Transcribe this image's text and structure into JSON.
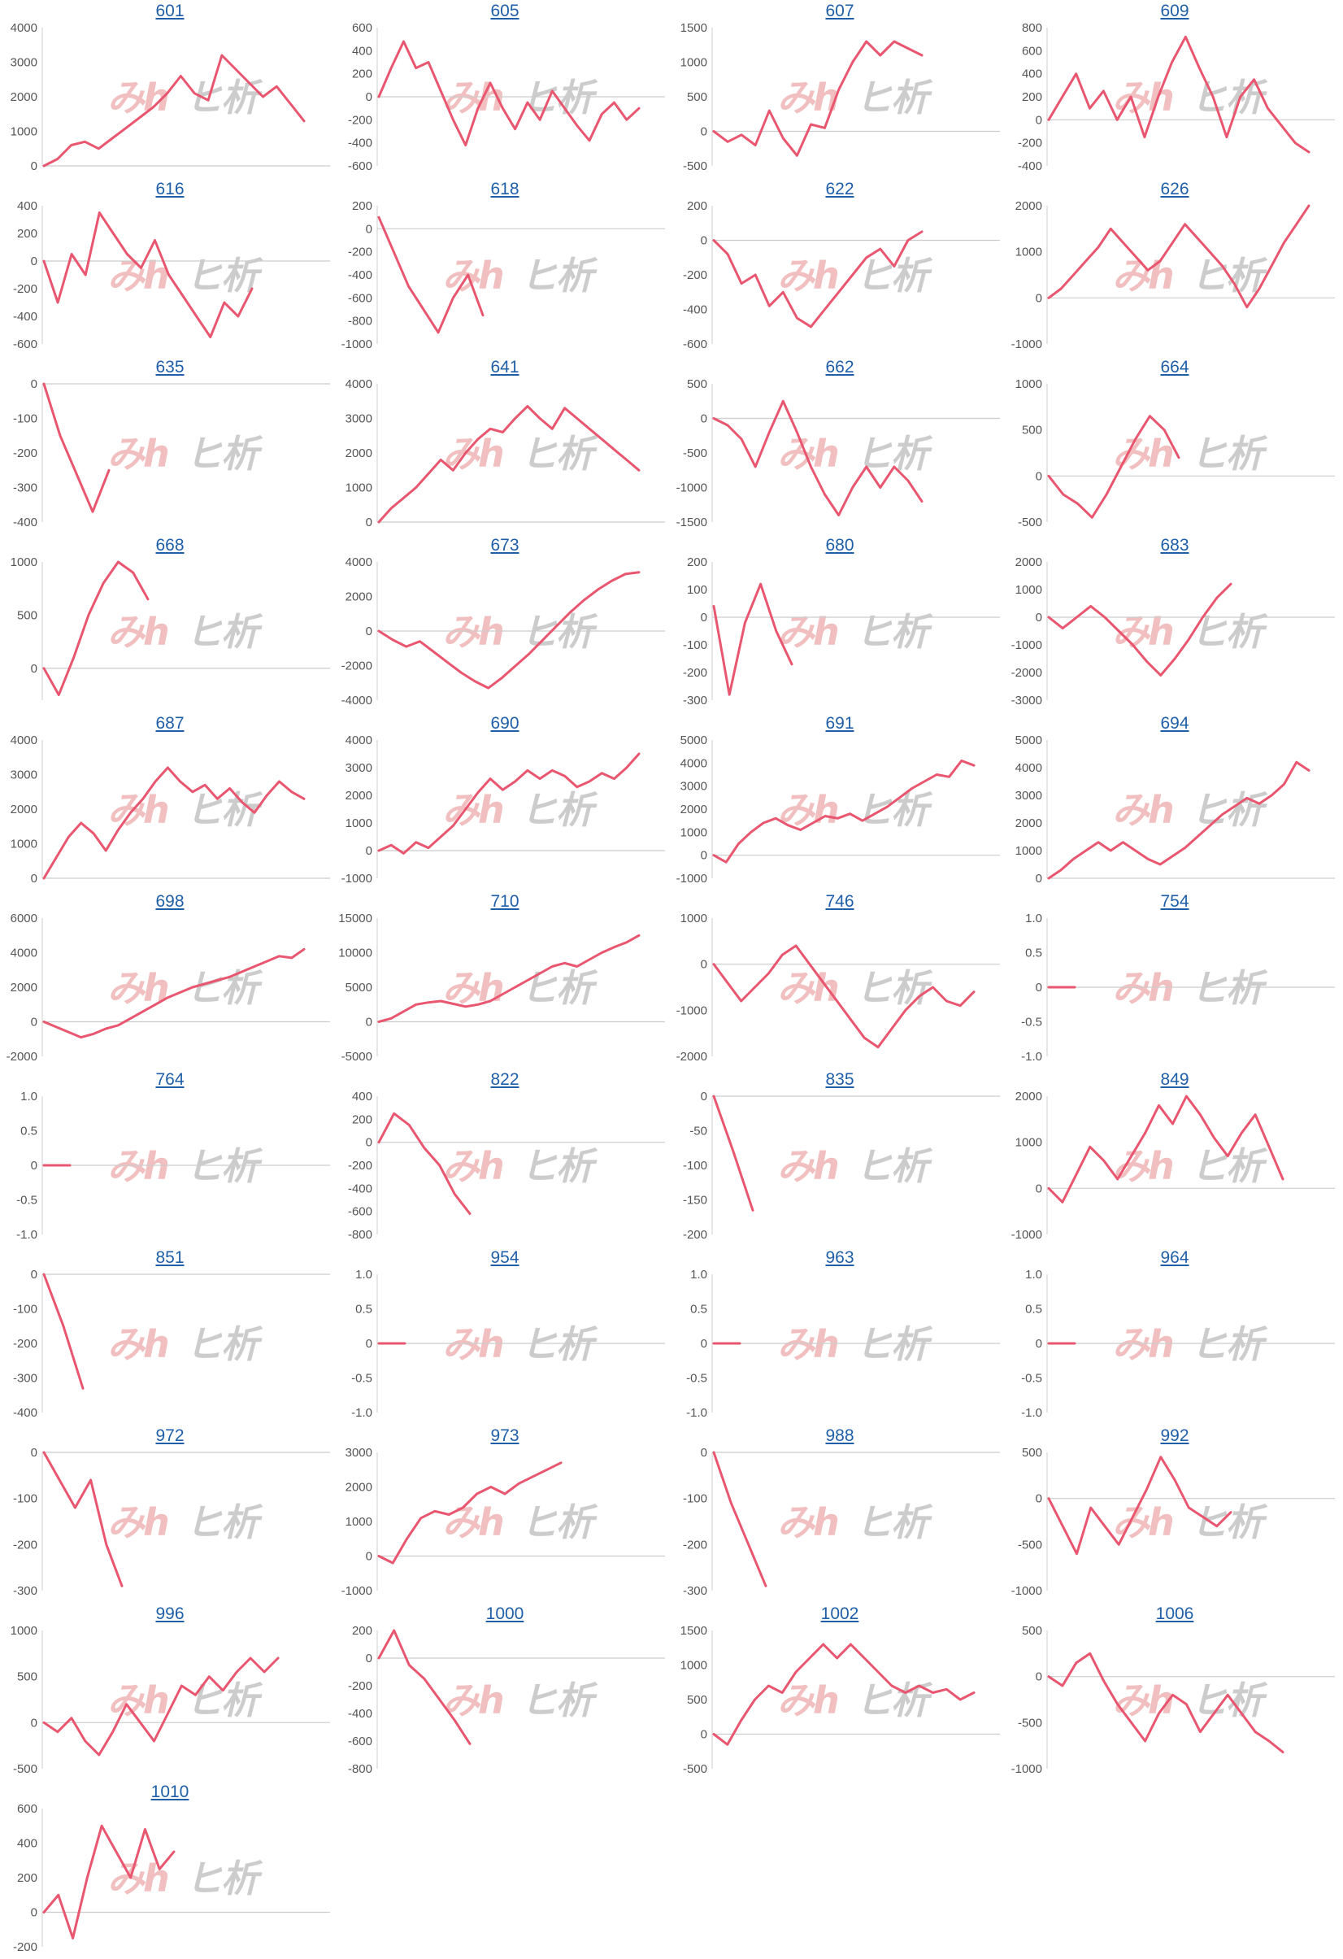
{
  "colors": {
    "line": "#e8566f",
    "axis": "#cccccc",
    "link": "#1f5fa8",
    "watermark_a": "#efb4b4",
    "watermark_b": "#c4c4c4"
  },
  "watermark": {
    "left": "みh",
    "right": "ヒ析"
  },
  "chart_data": [
    {
      "title": "601",
      "type": "line",
      "yticks": [
        4000,
        3000,
        2000,
        1000,
        0
      ],
      "ylim": [
        0,
        4000
      ],
      "n": 20,
      "y": [
        0,
        200,
        600,
        700,
        500,
        800,
        1100,
        1400,
        1700,
        2100,
        2600,
        2100,
        1900,
        3200,
        2800,
        2400,
        2000,
        2300,
        1800,
        1300
      ]
    },
    {
      "title": "605",
      "type": "line",
      "yticks": [
        600,
        400,
        200,
        0,
        -200,
        -400,
        -600
      ],
      "ylim": [
        -600,
        600
      ],
      "n": 22,
      "y": [
        0,
        250,
        480,
        250,
        300,
        50,
        -200,
        -420,
        -100,
        120,
        -100,
        -280,
        -50,
        -200,
        50,
        -100,
        -250,
        -380,
        -150,
        -50,
        -200,
        -100
      ]
    },
    {
      "title": "607",
      "type": "line",
      "yticks": [
        1500,
        1000,
        500,
        0,
        -500
      ],
      "ylim": [
        -500,
        1500
      ],
      "n": 16,
      "y": [
        0,
        -150,
        -50,
        -200,
        300,
        -100,
        -350,
        100,
        50,
        600,
        1000,
        1300,
        1100,
        1300,
        1200,
        1100
      ]
    },
    {
      "title": "609",
      "type": "line",
      "yticks": [
        800,
        600,
        400,
        200,
        0,
        -200,
        -400
      ],
      "ylim": [
        -400,
        800
      ],
      "n": 20,
      "y": [
        0,
        200,
        400,
        100,
        250,
        0,
        200,
        -150,
        200,
        500,
        720,
        450,
        200,
        -150,
        200,
        350,
        100,
        -50,
        -200,
        -280
      ]
    },
    {
      "title": "616",
      "type": "line",
      "yticks": [
        400,
        200,
        0,
        -200,
        -400,
        -600
      ],
      "ylim": [
        -600,
        400
      ],
      "n": 16,
      "y": [
        0,
        -300,
        50,
        -100,
        350,
        200,
        50,
        -50,
        150,
        -100,
        -250,
        -400,
        -550,
        -300,
        -400,
        -200
      ]
    },
    {
      "title": "618",
      "type": "line",
      "yticks": [
        200,
        0,
        -200,
        -400,
        -600,
        -800,
        -1000
      ],
      "ylim": [
        -1000,
        200
      ],
      "n": 8,
      "y": [
        100,
        -200,
        -500,
        -700,
        -900,
        -600,
        -400,
        -750
      ]
    },
    {
      "title": "622",
      "type": "line",
      "yticks": [
        200,
        0,
        -200,
        -400,
        -600
      ],
      "ylim": [
        -600,
        200
      ],
      "n": 16,
      "y": [
        0,
        -80,
        -250,
        -200,
        -380,
        -300,
        -450,
        -500,
        -400,
        -300,
        -200,
        -100,
        -50,
        -150,
        0,
        50
      ]
    },
    {
      "title": "626",
      "type": "line",
      "yticks": [
        2000,
        1000,
        0,
        -1000
      ],
      "ylim": [
        -1000,
        2000
      ],
      "n": 22,
      "y": [
        0,
        200,
        500,
        800,
        1100,
        1500,
        1200,
        900,
        600,
        800,
        1200,
        1600,
        1300,
        1000,
        700,
        300,
        -200,
        200,
        700,
        1200,
        1600,
        2000
      ]
    },
    {
      "title": "635",
      "type": "line",
      "yticks": [
        0,
        -100,
        -200,
        -300,
        -400
      ],
      "ylim": [
        -400,
        0
      ],
      "n": 5,
      "y": [
        0,
        -150,
        -260,
        -370,
        -250
      ]
    },
    {
      "title": "641",
      "type": "line",
      "yticks": [
        4000,
        3000,
        2000,
        1000,
        0
      ],
      "ylim": [
        0,
        4000
      ],
      "n": 22,
      "y": [
        0,
        400,
        700,
        1000,
        1400,
        1800,
        1500,
        2000,
        2400,
        2700,
        2600,
        3000,
        3350,
        3000,
        2700,
        3300,
        3000,
        2700,
        2400,
        2100,
        1800,
        1500
      ]
    },
    {
      "title": "662",
      "type": "line",
      "yticks": [
        500,
        0,
        -500,
        -1000,
        -1500
      ],
      "ylim": [
        -1500,
        500
      ],
      "n": 16,
      "y": [
        0,
        -100,
        -300,
        -700,
        -200,
        250,
        -200,
        -700,
        -1100,
        -1400,
        -1000,
        -700,
        -1000,
        -700,
        -900,
        -1200
      ]
    },
    {
      "title": "664",
      "type": "line",
      "yticks": [
        1000,
        500,
        0,
        -500
      ],
      "ylim": [
        -500,
        1000
      ],
      "n": 10,
      "y": [
        0,
        -200,
        -300,
        -450,
        -200,
        100,
        400,
        650,
        500,
        200
      ]
    },
    {
      "title": "668",
      "type": "line",
      "yticks": [
        1000,
        500,
        0
      ],
      "ylim": [
        -300,
        1000
      ],
      "n": 8,
      "y": [
        0,
        -250,
        100,
        500,
        800,
        1000,
        900,
        650
      ]
    },
    {
      "title": "673",
      "type": "line",
      "yticks": [
        4000,
        2000,
        0,
        -2000,
        -4000
      ],
      "ylim": [
        -4000,
        4000
      ],
      "n": 20,
      "y": [
        0,
        -500,
        -900,
        -600,
        -1200,
        -1800,
        -2400,
        -2900,
        -3300,
        -2700,
        -2000,
        -1300,
        -500,
        300,
        1100,
        1800,
        2400,
        2900,
        3300,
        3400
      ]
    },
    {
      "title": "680",
      "type": "line",
      "yticks": [
        200,
        100,
        0,
        -100,
        -200,
        -300
      ],
      "ylim": [
        -300,
        200
      ],
      "n": 6,
      "y": [
        40,
        -280,
        -20,
        120,
        -50,
        -170
      ]
    },
    {
      "title": "683",
      "type": "line",
      "yticks": [
        2000,
        1000,
        0,
        -1000,
        -2000,
        -3000
      ],
      "ylim": [
        -3000,
        2000
      ],
      "n": 14,
      "y": [
        0,
        -400,
        0,
        400,
        0,
        -500,
        -1000,
        -1600,
        -2100,
        -1500,
        -800,
        0,
        700,
        1200
      ]
    },
    {
      "title": "687",
      "type": "line",
      "yticks": [
        4000,
        3000,
        2000,
        1000,
        0
      ],
      "ylim": [
        0,
        4000
      ],
      "n": 22,
      "y": [
        0,
        600,
        1200,
        1600,
        1300,
        800,
        1400,
        1900,
        2300,
        2800,
        3200,
        2800,
        2500,
        2700,
        2300,
        2600,
        2200,
        1900,
        2400,
        2800,
        2500,
        2300
      ]
    },
    {
      "title": "690",
      "type": "line",
      "yticks": [
        4000,
        3000,
        2000,
        1000,
        0,
        -1000
      ],
      "ylim": [
        -1000,
        4000
      ],
      "n": 22,
      "y": [
        0,
        200,
        -100,
        300,
        100,
        500,
        900,
        1500,
        2100,
        2600,
        2200,
        2500,
        2900,
        2600,
        2900,
        2700,
        2300,
        2500,
        2800,
        2600,
        3000,
        3500
      ]
    },
    {
      "title": "691",
      "type": "line",
      "yticks": [
        5000,
        4000,
        3000,
        2000,
        1000,
        0,
        -1000
      ],
      "ylim": [
        -1000,
        5000
      ],
      "n": 22,
      "y": [
        0,
        -300,
        500,
        1000,
        1400,
        1600,
        1300,
        1100,
        1400,
        1700,
        1600,
        1800,
        1500,
        1800,
        2100,
        2500,
        2900,
        3200,
        3500,
        3400,
        4100,
        3900
      ]
    },
    {
      "title": "694",
      "type": "line",
      "yticks": [
        5000,
        4000,
        3000,
        2000,
        1000,
        0
      ],
      "ylim": [
        0,
        5000
      ],
      "n": 22,
      "y": [
        0,
        300,
        700,
        1000,
        1300,
        1000,
        1300,
        1000,
        700,
        500,
        800,
        1100,
        1500,
        1900,
        2300,
        2600,
        2900,
        2700,
        3000,
        3400,
        4200,
        3900
      ]
    },
    {
      "title": "698",
      "type": "line",
      "yticks": [
        6000,
        4000,
        2000,
        0,
        -2000
      ],
      "ylim": [
        -2000,
        6000
      ],
      "n": 22,
      "y": [
        0,
        -300,
        -600,
        -900,
        -700,
        -400,
        -200,
        200,
        600,
        1000,
        1400,
        1700,
        2000,
        2200,
        2400,
        2600,
        2900,
        3200,
        3500,
        3800,
        3700,
        4200
      ]
    },
    {
      "title": "710",
      "type": "line",
      "yticks": [
        15000,
        10000,
        5000,
        0,
        -5000
      ],
      "ylim": [
        -5000,
        15000
      ],
      "n": 22,
      "y": [
        0,
        500,
        1500,
        2500,
        2800,
        3000,
        2600,
        2200,
        2500,
        3000,
        4000,
        5000,
        6000,
        7000,
        8000,
        8500,
        8000,
        9000,
        10000,
        10800,
        11500,
        12500
      ]
    },
    {
      "title": "746",
      "type": "line",
      "yticks": [
        1000,
        0,
        -1000,
        -2000
      ],
      "ylim": [
        -2000,
        1000
      ],
      "n": 20,
      "y": [
        0,
        -400,
        -800,
        -500,
        -200,
        200,
        400,
        0,
        -400,
        -800,
        -1200,
        -1600,
        -1800,
        -1400,
        -1000,
        -700,
        -500,
        -800,
        -900,
        -600
      ]
    },
    {
      "title": "754",
      "type": "line",
      "yticks": [
        "1.0",
        "0.5",
        "0",
        "-0.5",
        "-1.0"
      ],
      "ylim": [
        -1,
        1
      ],
      "n": 2,
      "y": [
        0,
        0
      ]
    },
    {
      "title": "764",
      "type": "line",
      "yticks": [
        "1.0",
        "0.5",
        "0",
        "-0.5",
        "-1.0"
      ],
      "ylim": [
        -1,
        1
      ],
      "n": 2,
      "y": [
        0,
        0
      ]
    },
    {
      "title": "822",
      "type": "line",
      "yticks": [
        400,
        200,
        0,
        -200,
        -400,
        -600,
        -800
      ],
      "ylim": [
        -800,
        400
      ],
      "n": 7,
      "y": [
        0,
        250,
        150,
        -50,
        -200,
        -450,
        -620
      ]
    },
    {
      "title": "835",
      "type": "line",
      "yticks": [
        0,
        -50,
        -100,
        -150,
        -200
      ],
      "ylim": [
        -200,
        0
      ],
      "n": 3,
      "y": [
        0,
        -80,
        -165
      ]
    },
    {
      "title": "849",
      "type": "line",
      "yticks": [
        2000,
        1000,
        0,
        -1000
      ],
      "ylim": [
        -1000,
        2000
      ],
      "n": 18,
      "y": [
        0,
        -300,
        300,
        900,
        600,
        200,
        700,
        1200,
        1800,
        1400,
        2000,
        1600,
        1100,
        700,
        1200,
        1600,
        900,
        200
      ]
    },
    {
      "title": "851",
      "type": "line",
      "yticks": [
        0,
        -100,
        -200,
        -300,
        -400
      ],
      "ylim": [
        -400,
        0
      ],
      "n": 3,
      "y": [
        0,
        -150,
        -330
      ]
    },
    {
      "title": "954",
      "type": "line",
      "yticks": [
        "1.0",
        "0.5",
        "0",
        "-0.5",
        "-1.0"
      ],
      "ylim": [
        -1,
        1
      ],
      "n": 2,
      "y": [
        0,
        0
      ]
    },
    {
      "title": "963",
      "type": "line",
      "yticks": [
        "1.0",
        "0.5",
        "0",
        "-0.5",
        "-1.0"
      ],
      "ylim": [
        -1,
        1
      ],
      "n": 2,
      "y": [
        0,
        0
      ]
    },
    {
      "title": "964",
      "type": "line",
      "yticks": [
        "1.0",
        "0.5",
        "0",
        "-0.5",
        "-1.0"
      ],
      "ylim": [
        -1,
        1
      ],
      "n": 2,
      "y": [
        0,
        0
      ]
    },
    {
      "title": "972",
      "type": "line",
      "yticks": [
        0,
        -100,
        -200,
        -300
      ],
      "ylim": [
        -300,
        0
      ],
      "n": 6,
      "y": [
        0,
        -60,
        -120,
        -60,
        -200,
        -290
      ]
    },
    {
      "title": "973",
      "type": "line",
      "yticks": [
        3000,
        2000,
        1000,
        0,
        -1000
      ],
      "ylim": [
        -1000,
        3000
      ],
      "n": 14,
      "y": [
        0,
        -200,
        500,
        1100,
        1300,
        1200,
        1400,
        1800,
        2000,
        1800,
        2100,
        2300,
        2500,
        2700
      ]
    },
    {
      "title": "988",
      "type": "line",
      "yticks": [
        0,
        -100,
        -200,
        -300
      ],
      "ylim": [
        -300,
        0
      ],
      "n": 4,
      "y": [
        0,
        -110,
        -200,
        -290
      ]
    },
    {
      "title": "992",
      "type": "line",
      "yticks": [
        500,
        0,
        -500,
        -1000
      ],
      "ylim": [
        -1000,
        500
      ],
      "n": 14,
      "y": [
        0,
        -300,
        -600,
        -100,
        -300,
        -500,
        -200,
        100,
        450,
        200,
        -100,
        -200,
        -300,
        -150
      ]
    },
    {
      "title": "996",
      "type": "line",
      "yticks": [
        1000,
        500,
        0,
        -500
      ],
      "ylim": [
        -500,
        1000
      ],
      "n": 18,
      "y": [
        0,
        -100,
        50,
        -200,
        -350,
        -100,
        200,
        0,
        -200,
        100,
        400,
        300,
        500,
        350,
        550,
        700,
        550,
        700
      ]
    },
    {
      "title": "1000",
      "type": "line",
      "yticks": [
        200,
        0,
        -200,
        -400,
        -600,
        -800
      ],
      "ylim": [
        -800,
        200
      ],
      "n": 7,
      "y": [
        0,
        200,
        -50,
        -150,
        -300,
        -450,
        -620
      ]
    },
    {
      "title": "1002",
      "type": "line",
      "yticks": [
        1500,
        1000,
        500,
        0,
        -500
      ],
      "ylim": [
        -500,
        1500
      ],
      "n": 20,
      "y": [
        0,
        -150,
        200,
        500,
        700,
        600,
        900,
        1100,
        1300,
        1100,
        1300,
        1100,
        900,
        700,
        600,
        700,
        600,
        650,
        500,
        600
      ]
    },
    {
      "title": "1006",
      "type": "line",
      "yticks": [
        500,
        0,
        -500,
        -1000
      ],
      "ylim": [
        -1000,
        500
      ],
      "n": 18,
      "y": [
        0,
        -100,
        150,
        250,
        -50,
        -300,
        -500,
        -700,
        -400,
        -200,
        -300,
        -600,
        -400,
        -200,
        -400,
        -600,
        -700,
        -820
      ]
    },
    {
      "title": "1010",
      "type": "line",
      "yticks": [
        600,
        400,
        200,
        0,
        -200
      ],
      "ylim": [
        -200,
        600
      ],
      "n": 10,
      "y": [
        0,
        100,
        -150,
        200,
        500,
        350,
        200,
        480,
        250,
        350
      ]
    }
  ]
}
